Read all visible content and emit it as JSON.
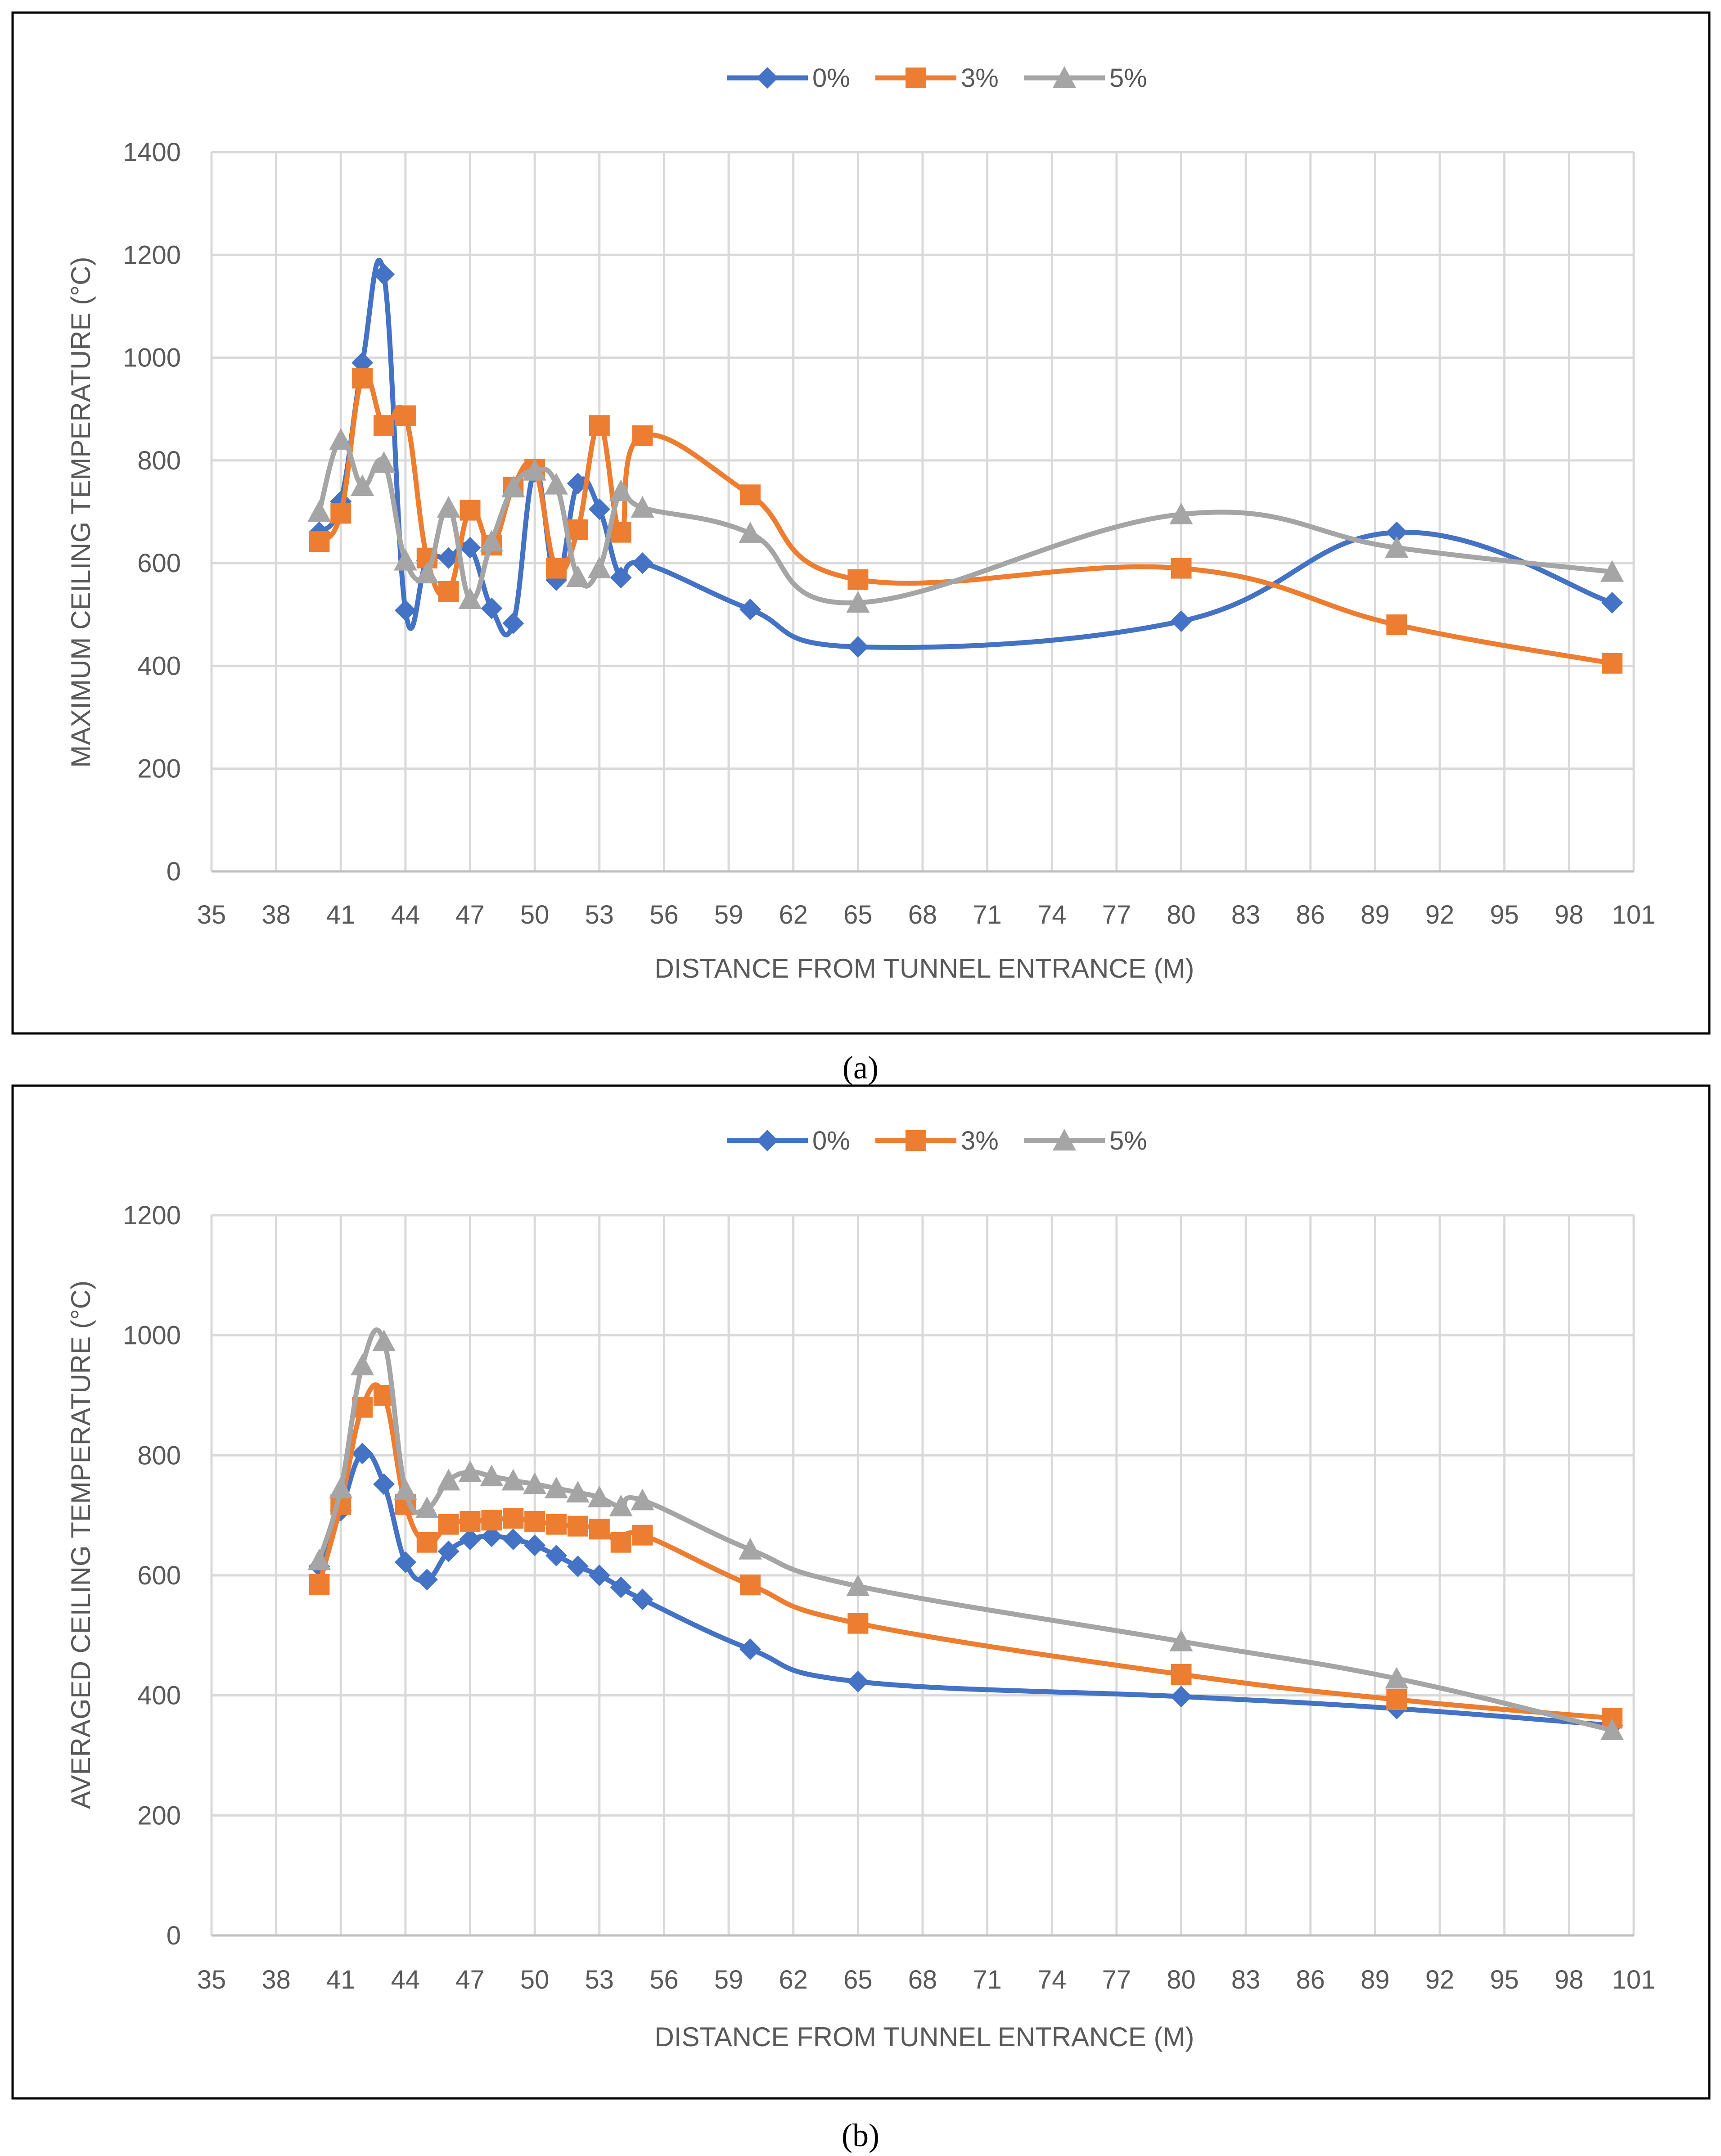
{
  "chart_data": [
    {
      "type": "line",
      "panel_label": "(a)",
      "xlabel": "DISTANCE FROM TUNNEL ENTRANCE (M)",
      "ylabel": "MAXIMUM CEILING TEMPERATURE (°C)",
      "ylim": [
        0,
        1400
      ],
      "yticks": [
        0,
        200,
        400,
        600,
        800,
        1000,
        1200,
        1400
      ],
      "xtick_labels": [
        "35",
        "38",
        "41",
        "44",
        "47",
        "50",
        "53",
        "56",
        "59",
        "62",
        "65",
        "68",
        "71",
        "74",
        "77",
        "80",
        "83",
        "86",
        "89",
        "92",
        "95",
        "98",
        "101"
      ],
      "grid": true,
      "smooth": true,
      "legend_position": "top",
      "series": [
        {
          "name": "0%",
          "color": "#4472c4",
          "marker": "diamond",
          "x": [
            40,
            41,
            42,
            43,
            44,
            45,
            46,
            47,
            48,
            49,
            50,
            51,
            52,
            53,
            54,
            55,
            60,
            65,
            80,
            90,
            100
          ],
          "y": [
            660,
            720,
            990,
            1162,
            508,
            605,
            610,
            630,
            512,
            483,
            778,
            567,
            755,
            705,
            572,
            600,
            510,
            437,
            487,
            660,
            523
          ]
        },
        {
          "name": "3%",
          "color": "#ed7d31",
          "marker": "square",
          "x": [
            40,
            41,
            42,
            43,
            44,
            45,
            46,
            47,
            48,
            49,
            50,
            51,
            52,
            53,
            54,
            55,
            60,
            65,
            80,
            90,
            100
          ],
          "y": [
            642,
            697,
            960,
            868,
            887,
            610,
            545,
            703,
            635,
            748,
            783,
            590,
            665,
            868,
            660,
            848,
            733,
            568,
            590,
            480,
            405
          ]
        },
        {
          "name": "5%",
          "color": "#a5a5a5",
          "marker": "triangle",
          "x": [
            40,
            41,
            42,
            43,
            44,
            45,
            46,
            47,
            48,
            49,
            50,
            51,
            52,
            53,
            54,
            55,
            60,
            65,
            80,
            90,
            100
          ],
          "y": [
            700,
            840,
            750,
            795,
            605,
            580,
            708,
            530,
            642,
            748,
            780,
            753,
            573,
            590,
            740,
            708,
            658,
            523,
            695,
            630,
            583
          ]
        }
      ]
    },
    {
      "type": "line",
      "panel_label": "(b)",
      "xlabel": "DISTANCE FROM TUNNEL ENTRANCE (M)",
      "ylabel": "AVERAGED CEILING TEMPERATURE (°C)",
      "ylim": [
        0,
        1200
      ],
      "yticks": [
        0,
        200,
        400,
        600,
        800,
        1000,
        1200
      ],
      "xtick_labels": [
        "35",
        "38",
        "41",
        "44",
        "47",
        "50",
        "53",
        "56",
        "59",
        "62",
        "65",
        "68",
        "71",
        "74",
        "77",
        "80",
        "83",
        "86",
        "89",
        "92",
        "95",
        "98",
        "101"
      ],
      "grid": true,
      "smooth": true,
      "legend_position": "top",
      "series": [
        {
          "name": "0%",
          "color": "#4472c4",
          "marker": "diamond",
          "x": [
            40,
            41,
            42,
            43,
            44,
            45,
            46,
            47,
            48,
            49,
            50,
            51,
            52,
            53,
            54,
            55,
            60,
            65,
            80,
            90,
            100
          ],
          "y": [
            615,
            708,
            803,
            752,
            622,
            593,
            640,
            660,
            665,
            660,
            650,
            633,
            615,
            600,
            580,
            560,
            477,
            423,
            398,
            378,
            350
          ]
        },
        {
          "name": "3%",
          "color": "#ed7d31",
          "marker": "square",
          "x": [
            40,
            41,
            42,
            43,
            44,
            45,
            46,
            47,
            48,
            49,
            50,
            51,
            52,
            53,
            54,
            55,
            60,
            65,
            80,
            90,
            100
          ],
          "y": [
            585,
            718,
            880,
            900,
            718,
            655,
            685,
            690,
            692,
            695,
            690,
            685,
            682,
            677,
            655,
            667,
            584,
            520,
            435,
            393,
            362
          ]
        },
        {
          "name": "5%",
          "color": "#a5a5a5",
          "marker": "triangle",
          "x": [
            40,
            41,
            42,
            43,
            44,
            45,
            46,
            47,
            48,
            49,
            50,
            51,
            52,
            53,
            54,
            55,
            60,
            65,
            80,
            90,
            100
          ],
          "y": [
            625,
            745,
            950,
            990,
            742,
            712,
            758,
            772,
            765,
            758,
            752,
            745,
            738,
            730,
            715,
            725,
            643,
            582,
            490,
            428,
            342
          ]
        }
      ]
    }
  ]
}
